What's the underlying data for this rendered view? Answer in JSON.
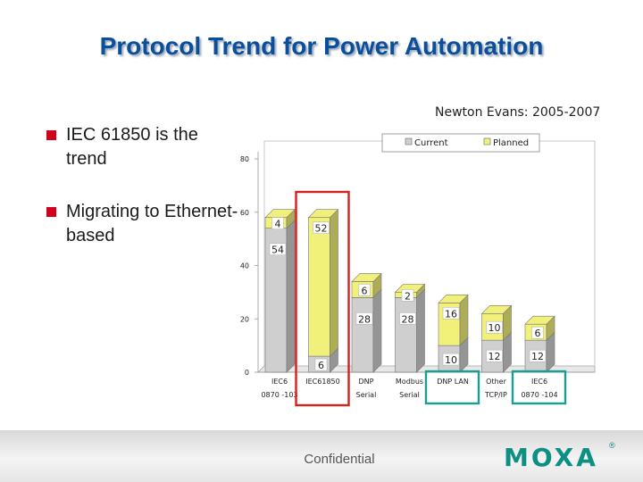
{
  "slide": {
    "title": "Protocol Trend for Power Automation"
  },
  "bullets": [
    {
      "text": "IEC 61850 is the trend"
    },
    {
      "text": "Migrating to Ethernet-based"
    }
  ],
  "chart_data": {
    "type": "bar",
    "stacked": true,
    "source": "Newton Evans: 2005-2007",
    "ylim": [
      0,
      80
    ],
    "yticks": [
      0,
      20,
      40,
      60,
      80
    ],
    "categories": [
      [
        "IEC6",
        "0870 -103"
      ],
      [
        "IEC61850",
        ""
      ],
      [
        "DNP",
        "Serial"
      ],
      [
        "Modbus",
        "Serial"
      ],
      [
        "DNP LAN",
        ""
      ],
      [
        "Other",
        "TCP/IP"
      ],
      [
        "IEC6",
        "0870 -104"
      ]
    ],
    "series": [
      {
        "name": "Current",
        "color": "#cfcfcf",
        "values": [
          54,
          6,
          28,
          28,
          10,
          12,
          12
        ]
      },
      {
        "name": "Planned",
        "color": "#f0f07a",
        "values": [
          4,
          52,
          6,
          2,
          16,
          10,
          6
        ]
      }
    ],
    "legend": "top",
    "highlights": [
      {
        "category_index": 1,
        "color": "#d62020"
      },
      {
        "category_index": 4,
        "color": "#1a9e93"
      },
      {
        "category_index": 6,
        "color": "#1a9e93"
      }
    ]
  },
  "footer": {
    "confidential": "Confidential",
    "logo": "MOXA",
    "logo_mark": "®"
  }
}
